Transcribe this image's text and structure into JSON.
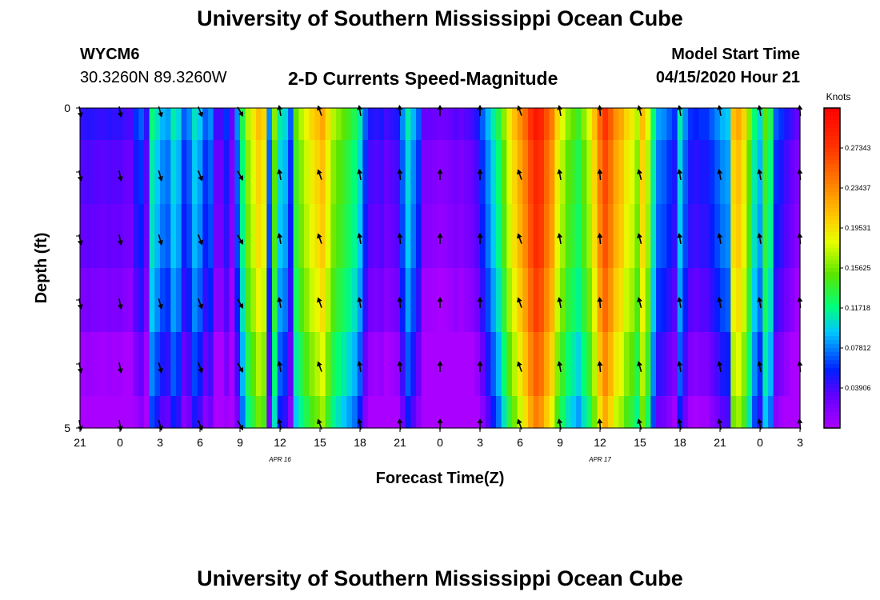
{
  "header": {
    "title": "University of Southern Mississippi Ocean Cube",
    "station_id": "WYCM6",
    "coordinates": "30.3260N 89.3260W",
    "plot_title": "2-D Currents Speed-Magnitude",
    "model_start_label": "Model Start Time",
    "model_start_value": "04/15/2020 Hour 21"
  },
  "footer": {
    "title": "University of Southern Mississippi Ocean Cube"
  },
  "chart_data": {
    "type": "heatmap",
    "title": "2-D Currents Speed-Magnitude",
    "xlabel": "Forecast Time(Z)",
    "ylabel": "Depth (ft)",
    "x_tick_labels": [
      "21",
      "0",
      "3",
      "6",
      "9",
      "12",
      "15",
      "18",
      "21",
      "0",
      "3",
      "6",
      "9",
      "12",
      "15",
      "18",
      "21",
      "0",
      "3"
    ],
    "date_labels": [
      {
        "text": "APR 16",
        "tick_index": 5
      },
      {
        "text": "APR 17",
        "tick_index": 13
      }
    ],
    "y_tick_labels": [
      "0",
      "5"
    ],
    "ylim": [
      0,
      5
    ],
    "colorbar": {
      "unit": "Knots",
      "tick_labels": [
        "0.27343",
        "0.23437",
        "0.19531",
        "0.15625",
        "0.11718",
        "0.07812",
        "0.03906"
      ],
      "vmin": 0.0,
      "vmax": 0.3125
    },
    "hours_start": 21,
    "hours_per_column": 1,
    "depth_rows": 6,
    "column_speed_knots": [
      0.035,
      0.037,
      0.036,
      0.034,
      0.033,
      0.036,
      0.034,
      0.035,
      0.03,
      0.028,
      0.05,
      0.06,
      0.035,
      0.11,
      0.095,
      0.08,
      0.075,
      0.1,
      0.09,
      0.06,
      0.07,
      0.095,
      0.085,
      0.06,
      0.07,
      0.03,
      0.03,
      0.05,
      0.02,
      0.07,
      0.12,
      0.16,
      0.18,
      0.2,
      0.19,
      0.07,
      0.15,
      0.1,
      0.09,
      0.06,
      0.14,
      0.16,
      0.175,
      0.19,
      0.2,
      0.21,
      0.185,
      0.16,
      0.15,
      0.14,
      0.13,
      0.12,
      0.1,
      0.06,
      0.04,
      0.035,
      0.04,
      0.03,
      0.035,
      0.04,
      0.07,
      0.1,
      0.08,
      0.06,
      0.02,
      0.02,
      0.018,
      0.015,
      0.017,
      0.02,
      0.025,
      0.02,
      0.025,
      0.03,
      0.04,
      0.06,
      0.08,
      0.1,
      0.12,
      0.15,
      0.18,
      0.2,
      0.22,
      0.24,
      0.265,
      0.285,
      0.275,
      0.25,
      0.23,
      0.19,
      0.17,
      0.15,
      0.14,
      0.13,
      0.15,
      0.17,
      0.2,
      0.24,
      0.265,
      0.245,
      0.22,
      0.21,
      0.19,
      0.18,
      0.16,
      0.2,
      0.17,
      0.11,
      0.075,
      0.07,
      0.06,
      0.05,
      0.1,
      0.07,
      0.05,
      0.045,
      0.05,
      0.05,
      0.06,
      0.07,
      0.08,
      0.085,
      0.2,
      0.21,
      0.19,
      0.15,
      0.11,
      0.09,
      0.14,
      0.12,
      0.06,
      0.05,
      0.04,
      0.03,
      0.02
    ],
    "row_offsets_knots": [
      0.01,
      0.0,
      -0.005,
      -0.015,
      -0.03,
      -0.045
    ],
    "arrow_rows_ft": [
      0.05,
      1.05,
      2.05,
      3.05,
      4.05,
      4.95
    ],
    "arrow_directions_deg": [
      170,
      170,
      165,
      160,
      150,
      -10,
      -20,
      -10,
      -5,
      0,
      0,
      -20,
      -10,
      -5,
      -15,
      -10,
      -10,
      -10,
      -5
    ]
  }
}
